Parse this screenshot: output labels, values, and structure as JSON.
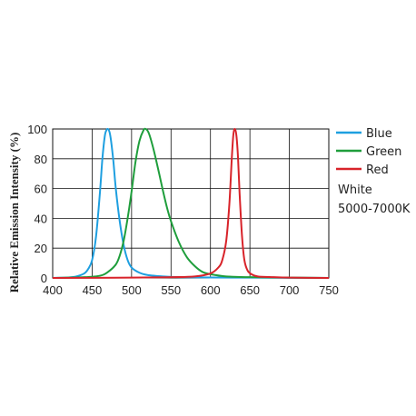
{
  "chart_data": {
    "type": "line",
    "title": "",
    "xlabel": "",
    "ylabel": "Relative Emission Intensity (%)",
    "xlim": [
      400,
      750
    ],
    "ylim": [
      0,
      100
    ],
    "x_ticks": [
      400,
      450,
      500,
      550,
      600,
      650,
      700,
      750
    ],
    "y_ticks": [
      0,
      20,
      40,
      60,
      80,
      100
    ],
    "grid": true,
    "legend_position": "right",
    "series": [
      {
        "name": "Blue",
        "color": "#1e9fe0",
        "x": [
          400,
          420,
          430,
          440,
          445,
          450,
          455,
          460,
          463,
          466,
          468,
          470,
          472,
          474,
          477,
          480,
          485,
          490,
          495,
          500,
          510,
          520,
          540,
          560,
          600,
          650,
          700,
          750
        ],
        "y": [
          0,
          0.3,
          1,
          3,
          6,
          12,
          28,
          58,
          80,
          95,
          99,
          100,
          98,
          92,
          78,
          60,
          38,
          22,
          12,
          7,
          3.5,
          2,
          1,
          0.5,
          0.3,
          0.2,
          0.1,
          0
        ]
      },
      {
        "name": "Green",
        "color": "#1f9e3c",
        "x": [
          400,
          440,
          460,
          470,
          480,
          485,
          490,
          495,
          500,
          505,
          510,
          515,
          518,
          522,
          528,
          535,
          540,
          545,
          550,
          560,
          570,
          580,
          590,
          600,
          620,
          650,
          700,
          750
        ],
        "y": [
          0,
          0.5,
          1.5,
          4,
          9,
          15,
          25,
          40,
          58,
          78,
          92,
          99,
          100,
          97,
          86,
          70,
          58,
          47,
          38,
          24,
          14,
          8,
          4,
          2.5,
          1,
          0.5,
          0.2,
          0
        ]
      },
      {
        "name": "Red",
        "color": "#d8232a",
        "x": [
          400,
          500,
          550,
          580,
          600,
          610,
          615,
          620,
          624,
          627,
          629,
          631,
          633,
          635,
          637,
          640,
          643,
          647,
          652,
          660,
          680,
          700,
          750
        ],
        "y": [
          0,
          0.2,
          0.5,
          1,
          3,
          7,
          12,
          25,
          50,
          80,
          96,
          100,
          95,
          80,
          56,
          28,
          12,
          5,
          2.5,
          1,
          0.5,
          0.2,
          0
        ]
      }
    ],
    "annotations": [
      "White",
      "5000-7000K"
    ]
  }
}
